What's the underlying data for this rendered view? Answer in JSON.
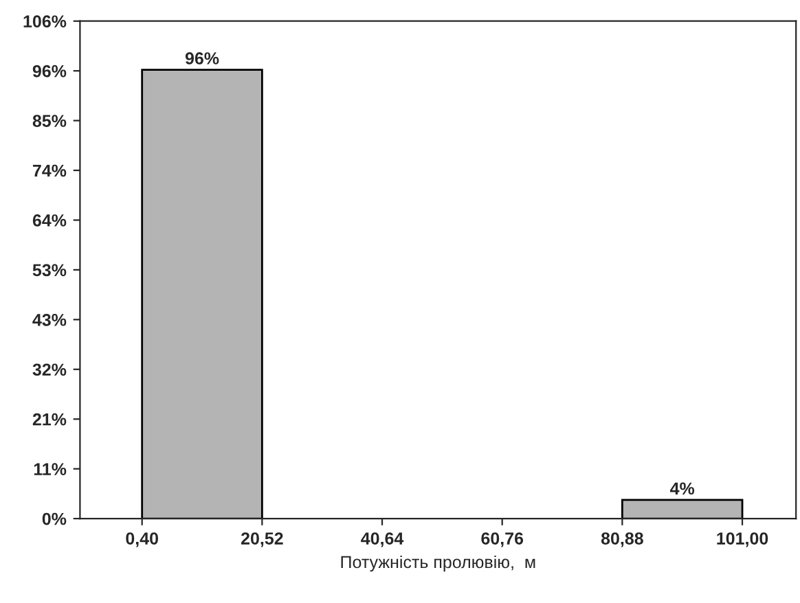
{
  "chart_data": {
    "type": "histogram",
    "xlabel": "Потужність пролювію,  м",
    "bins": [
      0.4,
      20.52,
      40.64,
      60.76,
      80.88,
      101.0
    ],
    "values": [
      96,
      0,
      0,
      0,
      4
    ],
    "value_labels": [
      "96%",
      null,
      null,
      null,
      "4%"
    ],
    "color": "#b4b4b4",
    "xlim": [
      -10,
      110
    ],
    "xticks": [
      {
        "value": 0.4,
        "label": "0,40"
      },
      {
        "value": 20.52,
        "label": "20,52"
      },
      {
        "value": 40.64,
        "label": "40,64"
      },
      {
        "value": 60.76,
        "label": "60,76"
      },
      {
        "value": 80.88,
        "label": "80,88"
      },
      {
        "value": 101.0,
        "label": "101,00"
      }
    ],
    "ylim": [
      0,
      106.4
    ],
    "yticks": [
      {
        "value": 0,
        "label": "0%"
      },
      {
        "value": 10.64,
        "label": "11%"
      },
      {
        "value": 21.28,
        "label": "21%"
      },
      {
        "value": 31.92,
        "label": "32%"
      },
      {
        "value": 42.56,
        "label": "43%"
      },
      {
        "value": 53.2,
        "label": "53%"
      },
      {
        "value": 63.84,
        "label": "64%"
      },
      {
        "value": 74.48,
        "label": "74%"
      },
      {
        "value": 85.12,
        "label": "85%"
      },
      {
        "value": 95.76,
        "label": "96%"
      },
      {
        "value": 106.4,
        "label": "106%"
      }
    ],
    "grid": false
  }
}
